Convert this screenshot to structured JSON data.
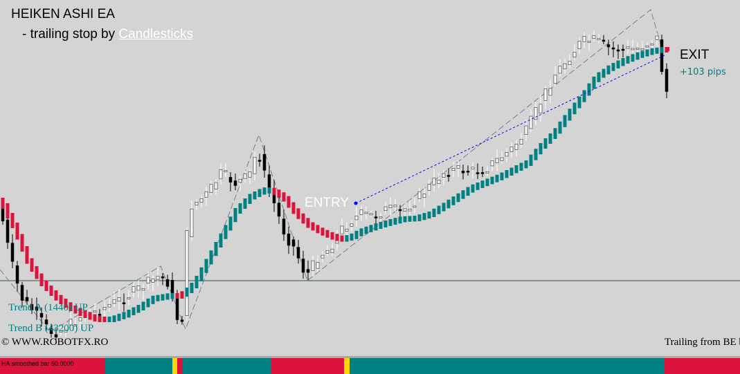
{
  "header": {
    "title": "HEIKEN ASHI EA",
    "subtitle_prefix": "- trailing stop by ",
    "subtitle_link": "Candlesticks"
  },
  "labels": {
    "entry": "ENTRY",
    "exit": "EXIT",
    "pips": "+103 pips",
    "trend_a": "Trend A (1440) UP",
    "trend_b": "Trend B (43200) UP",
    "copyright": "© WWW.ROBOTFX.RO",
    "trailing": "Trailing from BE b"
  },
  "status_bar": {
    "label": "HA smoothed bar 50.0000",
    "segments": [
      {
        "from": 0,
        "to": 152,
        "state": "down"
      },
      {
        "from": 152,
        "to": 249,
        "state": "up"
      },
      {
        "from": 249,
        "to": 256,
        "state": "neutral"
      },
      {
        "from": 256,
        "to": 264,
        "state": "down"
      },
      {
        "from": 264,
        "to": 392,
        "state": "up"
      },
      {
        "from": 392,
        "to": 497,
        "state": "down"
      },
      {
        "from": 497,
        "to": 505,
        "state": "neutral"
      },
      {
        "from": 505,
        "to": 960,
        "state": "up"
      },
      {
        "from": 960,
        "to": 1069,
        "state": "down"
      }
    ]
  },
  "colors": {
    "background": "#d4d4d4",
    "ha_up": "#008080",
    "ha_down": "#dc143c",
    "candle_up": "#ffffff",
    "candle_down": "#000000",
    "trailing_line": "#0000ff",
    "zigzag": "#708090",
    "neutral": "#ffd700"
  },
  "chart_data": {
    "type": "candlestick",
    "bars": 140,
    "ylim": [
      0,
      515
    ],
    "horizontal_line": 406,
    "price_path": [
      [
        0,
        300
      ],
      [
        14,
        370
      ],
      [
        30,
        430
      ],
      [
        44,
        445
      ],
      [
        60,
        465
      ],
      [
        72,
        480
      ],
      [
        85,
        480
      ],
      [
        100,
        470
      ],
      [
        120,
        455
      ],
      [
        140,
        450
      ],
      [
        160,
        440
      ],
      [
        180,
        430
      ],
      [
        200,
        418
      ],
      [
        220,
        405
      ],
      [
        232,
        398
      ],
      [
        244,
        410
      ],
      [
        256,
        460
      ],
      [
        264,
        460
      ],
      [
        272,
        300
      ],
      [
        288,
        290
      ],
      [
        300,
        280
      ],
      [
        320,
        250
      ],
      [
        340,
        265
      ],
      [
        360,
        255
      ],
      [
        372,
        215
      ],
      [
        384,
        260
      ],
      [
        398,
        300
      ],
      [
        412,
        340
      ],
      [
        426,
        360
      ],
      [
        440,
        395
      ],
      [
        446,
        395
      ],
      [
        460,
        370
      ],
      [
        476,
        360
      ],
      [
        490,
        335
      ],
      [
        506,
        320
      ],
      [
        520,
        310
      ],
      [
        540,
        312
      ],
      [
        560,
        302
      ],
      [
        580,
        306
      ],
      [
        600,
        290
      ],
      [
        620,
        270
      ],
      [
        640,
        250
      ],
      [
        660,
        245
      ],
      [
        680,
        248
      ],
      [
        700,
        245
      ],
      [
        720,
        230
      ],
      [
        740,
        215
      ],
      [
        760,
        190
      ],
      [
        780,
        150
      ],
      [
        800,
        110
      ],
      [
        820,
        85
      ],
      [
        840,
        60
      ],
      [
        860,
        58
      ],
      [
        880,
        70
      ],
      [
        900,
        72
      ],
      [
        920,
        70
      ],
      [
        940,
        60
      ],
      [
        950,
        55
      ],
      [
        956,
        100
      ],
      [
        962,
        130
      ],
      [
        966,
        140
      ]
    ],
    "ha_path": [
      [
        0,
        290
      ],
      [
        20,
        330
      ],
      [
        40,
        380
      ],
      [
        60,
        410
      ],
      [
        80,
        430
      ],
      [
        100,
        445
      ],
      [
        120,
        455
      ],
      [
        140,
        462
      ],
      [
        160,
        462
      ],
      [
        180,
        455
      ],
      [
        200,
        445
      ],
      [
        220,
        432
      ],
      [
        244,
        428
      ],
      [
        256,
        428
      ],
      [
        266,
        424
      ],
      [
        280,
        410
      ],
      [
        300,
        375
      ],
      [
        320,
        340
      ],
      [
        340,
        305
      ],
      [
        360,
        285
      ],
      [
        380,
        275
      ],
      [
        392,
        276
      ],
      [
        408,
        285
      ],
      [
        426,
        308
      ],
      [
        444,
        325
      ],
      [
        462,
        335
      ],
      [
        478,
        342
      ],
      [
        492,
        346
      ],
      [
        506,
        343
      ],
      [
        520,
        335
      ],
      [
        540,
        328
      ],
      [
        560,
        322
      ],
      [
        580,
        317
      ],
      [
        600,
        316
      ],
      [
        620,
        310
      ],
      [
        640,
        298
      ],
      [
        660,
        285
      ],
      [
        680,
        272
      ],
      [
        700,
        264
      ],
      [
        720,
        256
      ],
      [
        740,
        246
      ],
      [
        760,
        236
      ],
      [
        780,
        212
      ],
      [
        800,
        192
      ],
      [
        820,
        165
      ],
      [
        840,
        140
      ],
      [
        860,
        112
      ],
      [
        880,
        98
      ],
      [
        900,
        88
      ],
      [
        920,
        80
      ],
      [
        940,
        74
      ],
      [
        956,
        72
      ],
      [
        966,
        72
      ]
    ],
    "ha_down_ranges": [
      [
        0,
        152
      ],
      [
        256,
        264
      ],
      [
        392,
        497
      ],
      [
        960,
        1069
      ]
    ],
    "trailing_stop": [
      [
        514,
        294
      ],
      [
        960,
        80
      ]
    ],
    "zigzag": [
      [
        0,
        390
      ],
      [
        72,
        480
      ],
      [
        232,
        385
      ],
      [
        268,
        476
      ],
      [
        374,
        195
      ],
      [
        444,
        406
      ],
      [
        940,
        14
      ],
      [
        956,
        70
      ]
    ]
  }
}
